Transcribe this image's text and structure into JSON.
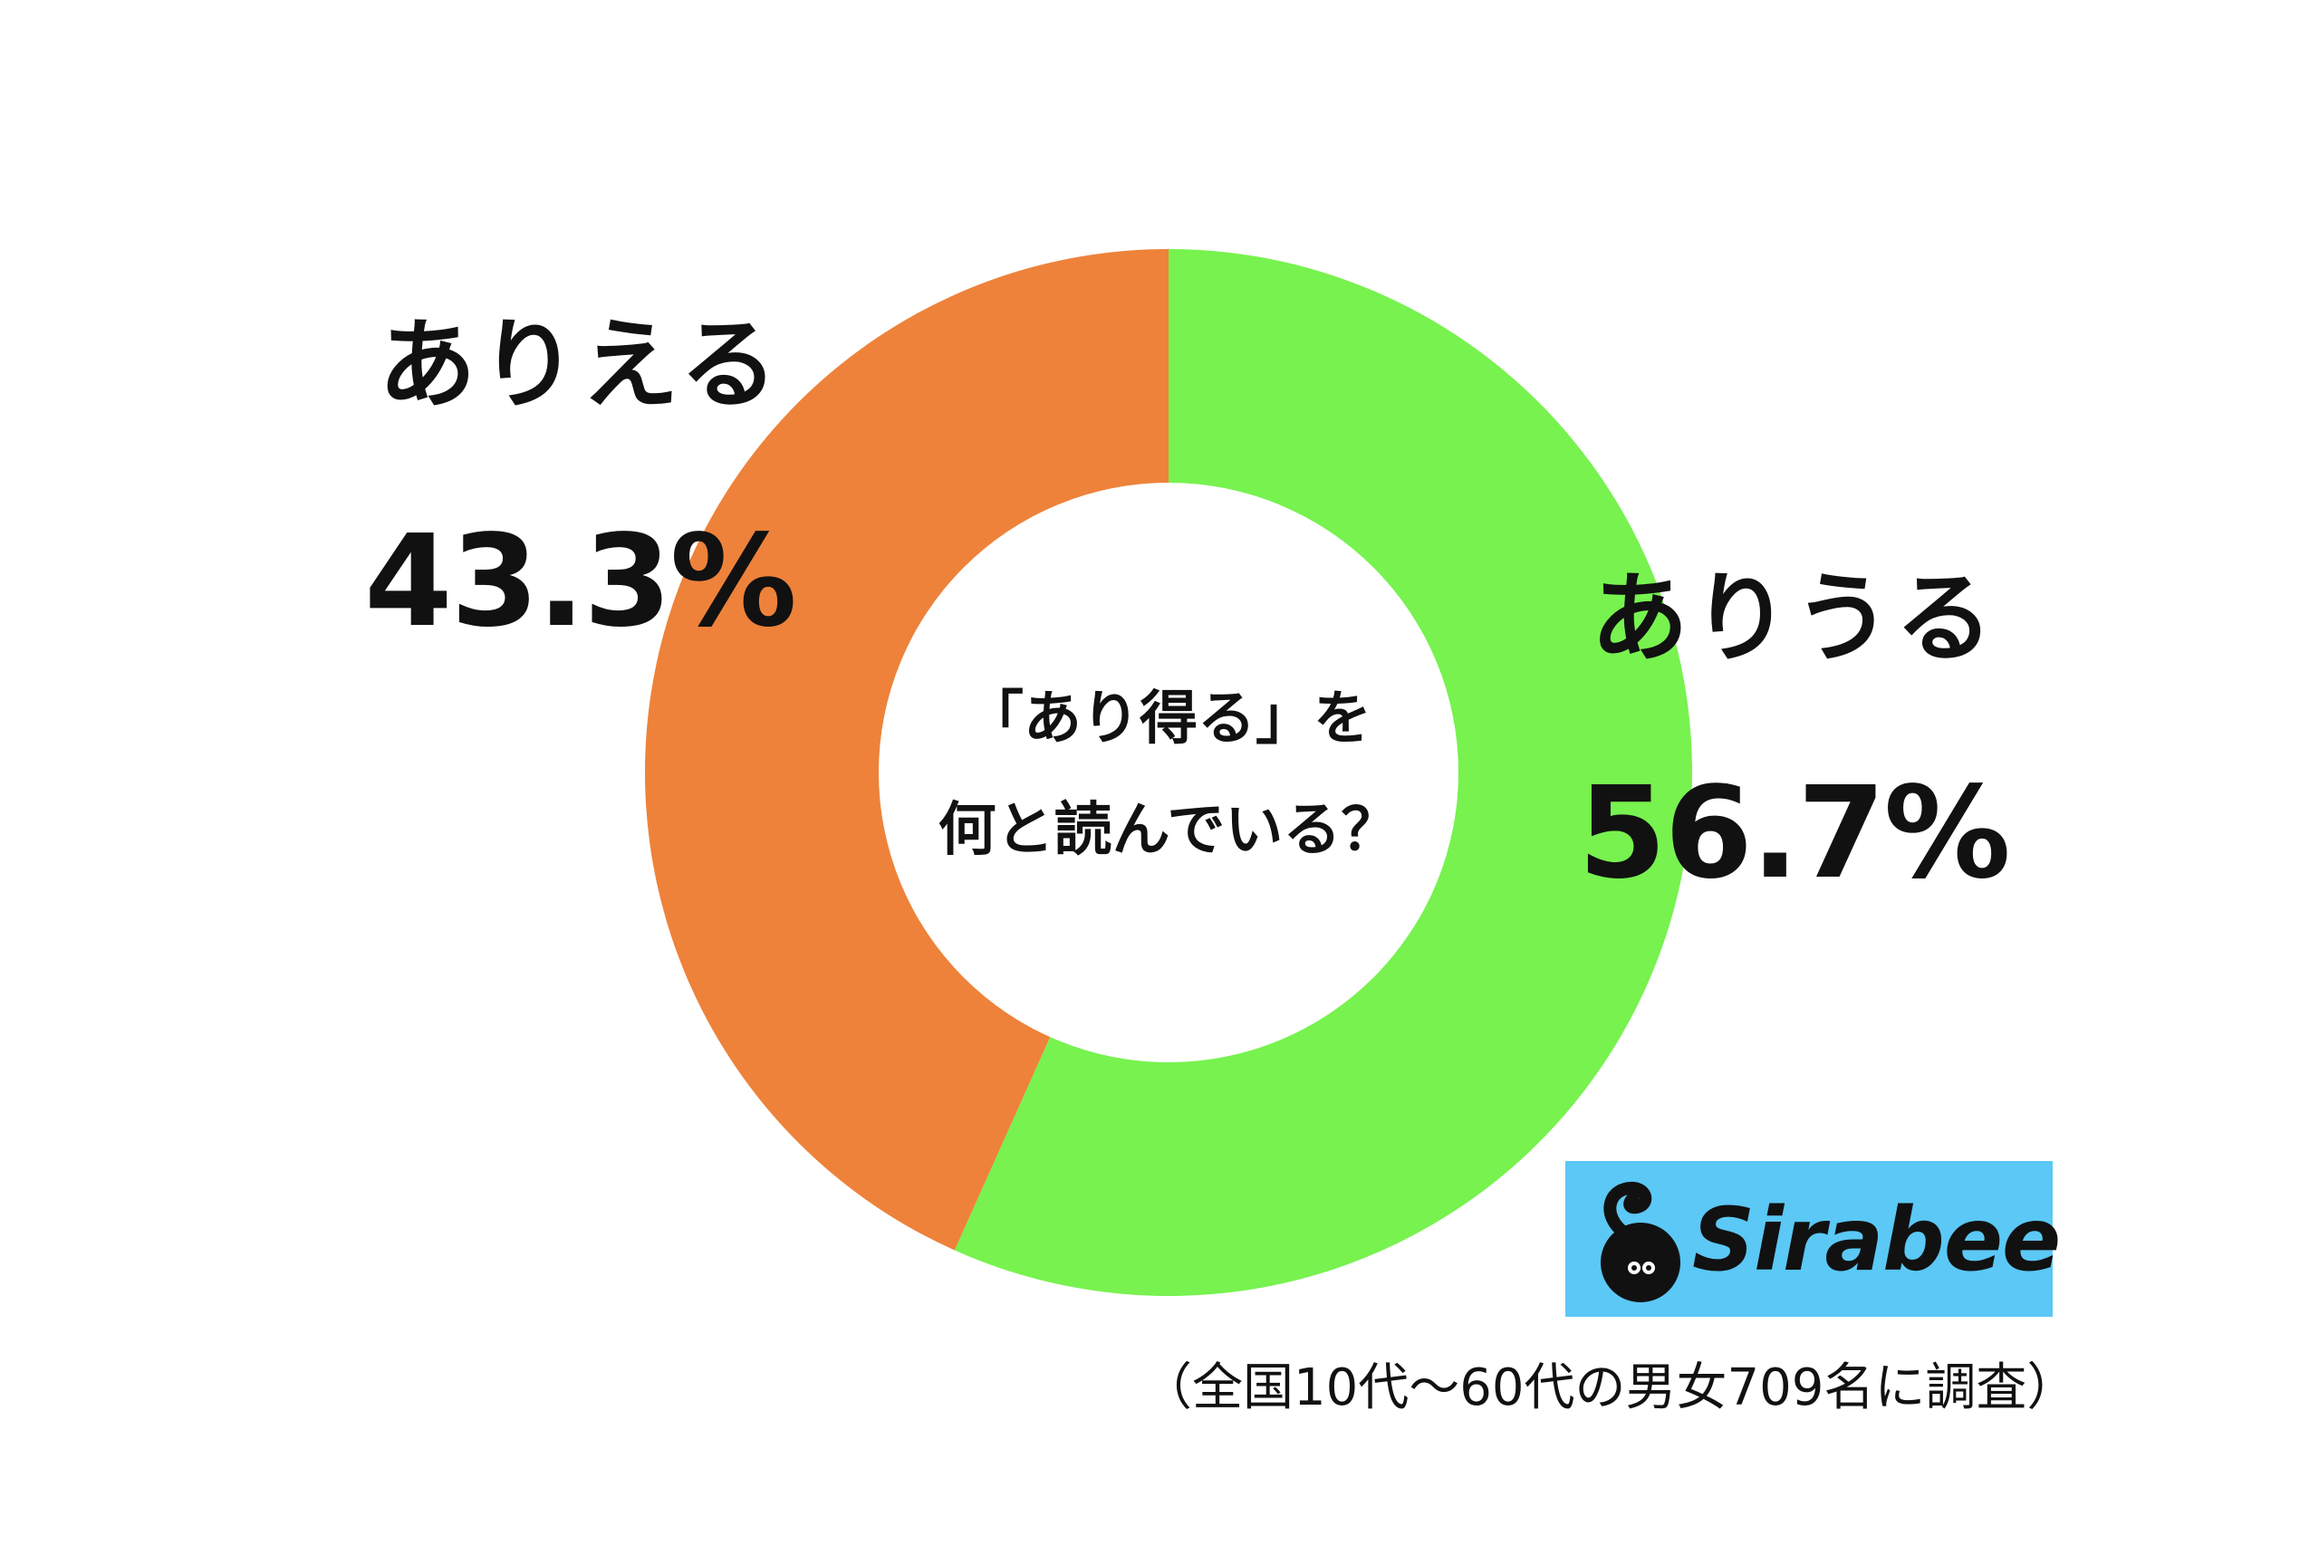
{
  "chart_data": {
    "type": "pie",
    "title": "「あり得る」を\n何と読んでいる？",
    "title_lines": [
      "「あり得る」を",
      "何と読んでいる？"
    ],
    "donut": true,
    "slices": [
      {
        "name": "ありうる",
        "value": 56.7,
        "label": "56.7%",
        "color": "#77f24f"
      },
      {
        "name": "ありえる",
        "value": 43.3,
        "label": "43.3%",
        "color": "#ee823a"
      }
    ],
    "legend": "none"
  },
  "brand": {
    "logo_text": "Sirabee",
    "logo_bg": "#5bc8f5"
  },
  "footnote": "（全国10代〜60代の男女709名に調査）"
}
